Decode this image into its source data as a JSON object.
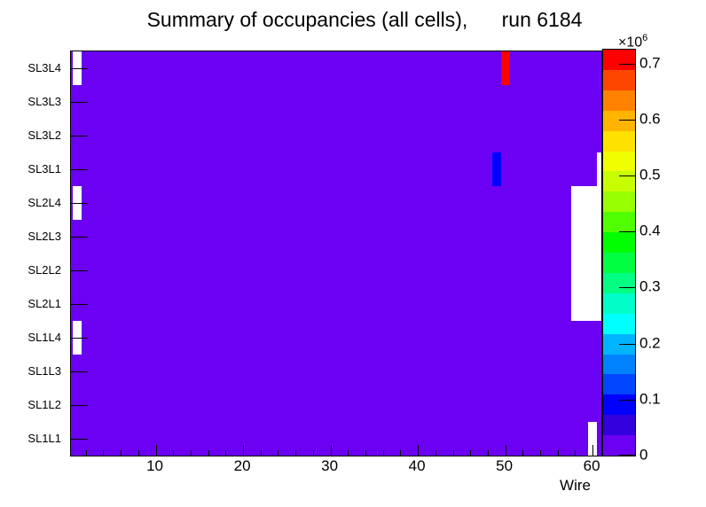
{
  "title": "Summary of occupancies (all cells),      run 6184",
  "chart_data": {
    "type": "heatmap",
    "title": "Summary of occupancies (all cells),      run 6184",
    "xlabel": "Wire",
    "ylabel": "",
    "grid": false,
    "x_axis": {
      "major_ticks": [
        10,
        20,
        30,
        40,
        50,
        60
      ],
      "major_tick_labels": [
        "10",
        "20",
        "30",
        "40",
        "50",
        "60"
      ],
      "minor_tick_step": 2,
      "minor_tick_start": 2,
      "minor_tick_end": 60,
      "view_min": 0.3,
      "view_max": 61.0
    },
    "rows_bottom_to_top": [
      "SL1L1",
      "SL1L2",
      "SL1L3",
      "SL1L4",
      "SL2L1",
      "SL2L2",
      "SL2L3",
      "SL2L4",
      "SL3L1",
      "SL3L2",
      "SL3L3",
      "SL3L4"
    ],
    "background_color": "#6C00F2",
    "background_band_counts": [
      0,
      36000
    ],
    "anomalies": [
      {
        "row": "SL3L4",
        "wire": 50,
        "approx_value": 720000,
        "color": "#FF0000"
      },
      {
        "row": "SL3L1",
        "wire": 49,
        "approx_value": 100000,
        "color": "#0000FF"
      }
    ],
    "empty_regions": [
      {
        "row": "SL3L4",
        "wire_from": 1,
        "wire_to": 1
      },
      {
        "row": "SL2L4",
        "wire_from": 1,
        "wire_to": 1
      },
      {
        "row": "SL1L4",
        "wire_from": 1,
        "wire_to": 1
      },
      {
        "row": "SL3L1",
        "wire_from": 61,
        "wire_to": 61
      },
      {
        "row": "SL2L4",
        "wire_from": 58,
        "wire_to": 61
      },
      {
        "row": "SL2L3",
        "wire_from": 58,
        "wire_to": 61
      },
      {
        "row": "SL2L2",
        "wire_from": 58,
        "wire_to": 61
      },
      {
        "row": "SL2L1",
        "wire_from": 58,
        "wire_to": 61
      },
      {
        "row": "SL1L1",
        "wire_from": 60,
        "wire_to": 60
      }
    ],
    "z_scale": {
      "exponent_base": "×10",
      "exponent": "6",
      "tick_values": [
        0,
        0.1,
        0.2,
        0.3,
        0.4,
        0.5,
        0.6,
        0.7
      ],
      "tick_labels": [
        "0",
        "0.1",
        "0.2",
        "0.3",
        "0.4",
        "0.5",
        "0.6",
        "0.7"
      ],
      "max_value": 0.725,
      "legend_position": "right",
      "palette_bottom_to_top": [
        "#6C00F2",
        "#3100DC",
        "#0000FF",
        "#0046FF",
        "#0082FF",
        "#00B4FF",
        "#00FFFF",
        "#00FFC8",
        "#00FF82",
        "#00FF41",
        "#00FF00",
        "#50FF00",
        "#96FF00",
        "#C8FF00",
        "#F0FF00",
        "#FFE100",
        "#FFB400",
        "#FF8200",
        "#FF4600",
        "#FF0000"
      ]
    }
  }
}
